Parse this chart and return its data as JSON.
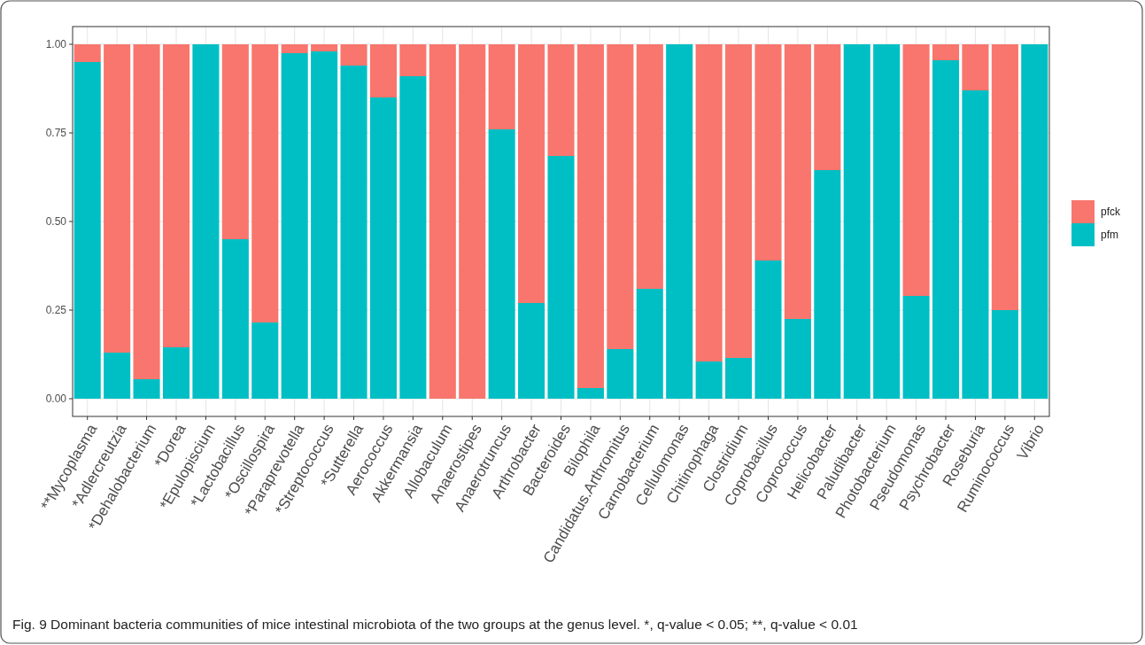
{
  "chart_data": {
    "type": "bar",
    "stacked": true,
    "categories": [
      "**Mycoplasma",
      "*Adlercreutzia",
      "*Dehalobacterium",
      "*Dorea",
      "*Epulopiscium",
      "*Lactobacillus",
      "*Oscillospira",
      "*Paraprevotella",
      "*Streptococcus",
      "*Sutterella",
      "Aerococcus",
      "Akkermansia",
      "Allobaculum",
      "Anaerostipes",
      "Anaerotruncus",
      "Arthrobacter",
      "Bacteroides",
      "Bilophila",
      "Candidatus.Arthromitus",
      "Carnobacterium",
      "Cellulomonas",
      "Chitinophaga",
      "Clostridium",
      "Coprobacillus",
      "Coprococcus",
      "Helicobacter",
      "Paludibacter",
      "Photobacterium",
      "Pseudomonas",
      "Psychrobacter",
      "Roseburia",
      "Ruminococcus",
      "Vibrio"
    ],
    "series": [
      {
        "name": "pfm",
        "color": "#00bfc4",
        "values": [
          0.95,
          0.13,
          0.055,
          0.145,
          1,
          0.45,
          0.215,
          0.975,
          0.98,
          0.94,
          0.85,
          0.91,
          0,
          0,
          0.76,
          0.27,
          0.685,
          0.03,
          0.14,
          0.31,
          1,
          0.105,
          0.115,
          0.39,
          0.225,
          0.645,
          1,
          1,
          0.29,
          0.955,
          0.87,
          0.25,
          1
        ]
      },
      {
        "name": "pfck",
        "color": "#f8766d",
        "values": [
          0.05,
          0.87,
          0.945,
          0.855,
          0,
          0.55,
          0.785,
          0.025,
          0.02,
          0.06,
          0.15,
          0.09,
          1,
          1,
          0.24,
          0.73,
          0.315,
          0.97,
          0.86,
          0.69,
          0,
          0.895,
          0.885,
          0.61,
          0.775,
          0.355,
          0,
          0,
          0.71,
          0.045,
          0.13,
          0.75,
          0
        ]
      }
    ],
    "ylim": [
      -0.05,
      1.05
    ],
    "yticks": [
      {
        "value": 0,
        "label": "0.00"
      },
      {
        "value": 0.25,
        "label": "0.25"
      },
      {
        "value": 0.5,
        "label": "0.50"
      },
      {
        "value": 0.75,
        "label": "0.75"
      },
      {
        "value": 1,
        "label": "1.00"
      }
    ],
    "grid": true,
    "legend": "right",
    "annotations": [
      "Fig. 9 Dominant bacteria communities of mice intestinal microbiota of the two groups at the genus level. *, q-value < 0.05; **, q-value < 0.01"
    ]
  }
}
